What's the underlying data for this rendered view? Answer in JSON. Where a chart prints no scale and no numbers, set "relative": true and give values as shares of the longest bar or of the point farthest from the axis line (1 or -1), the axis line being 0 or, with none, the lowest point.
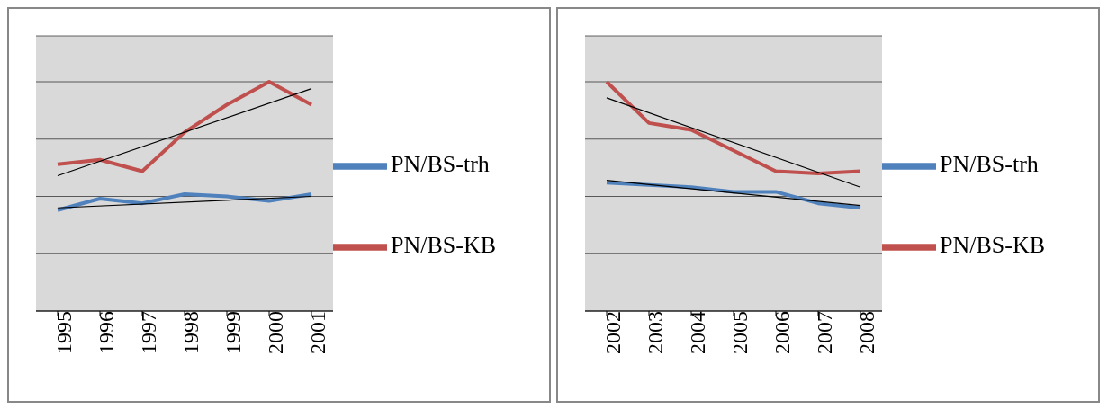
{
  "chart_data": [
    {
      "type": "line",
      "categories": [
        "1995",
        "1996",
        "1997",
        "1998",
        "1999",
        "2000",
        "2001"
      ],
      "relative": true,
      "grid": "y",
      "legend": "right",
      "series": [
        {
          "name": "PN/BS-trh",
          "color": "#4f81bd",
          "values": [
            0.44,
            0.49,
            0.47,
            0.51,
            0.5,
            0.48,
            0.51
          ]
        },
        {
          "name": "PN/BS-KB",
          "color": "#c0504d",
          "values": [
            0.64,
            0.66,
            0.61,
            0.78,
            0.9,
            1.0,
            0.9
          ]
        },
        {
          "type": "line",
          "color": "#000000",
          "values": [
            0.45,
            null,
            null,
            null,
            null,
            null,
            0.5
          ]
        },
        {
          "type": "line",
          "color": "#000000",
          "values": [
            0.59,
            null,
            null,
            null,
            null,
            null,
            0.97
          ]
        }
      ]
    },
    {
      "type": "line",
      "categories": [
        "2002",
        "2003",
        "2004",
        "2005",
        "2006",
        "2007",
        "2008"
      ],
      "relative": true,
      "grid": "y",
      "legend": "right",
      "series": [
        {
          "name": "PN/BS-trh",
          "color": "#4f81bd",
          "values": [
            0.56,
            0.55,
            0.54,
            0.52,
            0.52,
            0.47,
            0.45
          ]
        },
        {
          "name": "PN/BS-KB",
          "color": "#c0504d",
          "values": [
            1.0,
            0.82,
            0.79,
            0.7,
            0.61,
            0.6,
            0.61
          ]
        },
        {
          "type": "line",
          "color": "#000000",
          "values": [
            0.57,
            null,
            null,
            null,
            null,
            null,
            0.46
          ]
        },
        {
          "type": "line",
          "color": "#000000",
          "values": [
            0.93,
            null,
            null,
            null,
            null,
            null,
            0.54
          ]
        }
      ]
    }
  ]
}
